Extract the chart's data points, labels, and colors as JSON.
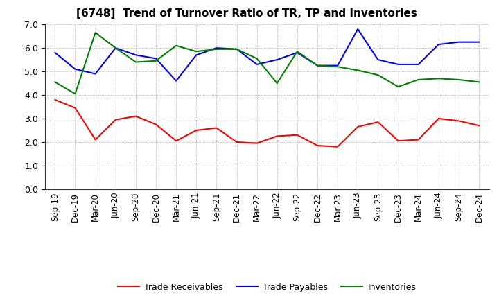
{
  "title": "[6748]  Trend of Turnover Ratio of TR, TP and Inventories",
  "labels": [
    "Sep-19",
    "Dec-19",
    "Mar-20",
    "Jun-20",
    "Sep-20",
    "Dec-20",
    "Mar-21",
    "Jun-21",
    "Sep-21",
    "Dec-21",
    "Mar-22",
    "Jun-22",
    "Sep-22",
    "Dec-22",
    "Mar-23",
    "Jun-23",
    "Sep-23",
    "Dec-23",
    "Mar-24",
    "Jun-24",
    "Sep-24",
    "Dec-24"
  ],
  "trade_receivables": [
    3.8,
    3.45,
    2.1,
    2.95,
    3.1,
    2.75,
    2.05,
    2.5,
    2.6,
    2.0,
    1.95,
    2.25,
    2.3,
    1.85,
    1.8,
    2.65,
    2.85,
    2.05,
    2.1,
    3.0,
    2.9,
    2.7
  ],
  "trade_payables": [
    5.8,
    5.1,
    4.9,
    6.0,
    5.7,
    5.55,
    4.6,
    5.7,
    6.0,
    5.95,
    5.3,
    5.5,
    5.8,
    5.25,
    5.25,
    6.8,
    5.5,
    5.3,
    5.3,
    6.15,
    6.25,
    6.25
  ],
  "inventories": [
    4.55,
    4.05,
    6.65,
    6.0,
    5.4,
    5.45,
    6.1,
    5.85,
    5.95,
    5.95,
    5.55,
    4.5,
    5.85,
    5.25,
    5.2,
    5.05,
    4.85,
    4.35,
    4.65,
    4.7,
    4.65,
    4.55
  ],
  "color_tr": "#ff0000",
  "color_tp": "#0000ff",
  "color_inv": "#008000",
  "ylim": [
    0.0,
    7.0
  ],
  "yticks": [
    0.0,
    1.0,
    2.0,
    3.0,
    4.0,
    5.0,
    6.0,
    7.0
  ],
  "legend_tr": "Trade Receivables",
  "legend_tp": "Trade Payables",
  "legend_inv": "Inventories",
  "bg_color": "#ffffff",
  "grid_color": "#999999"
}
